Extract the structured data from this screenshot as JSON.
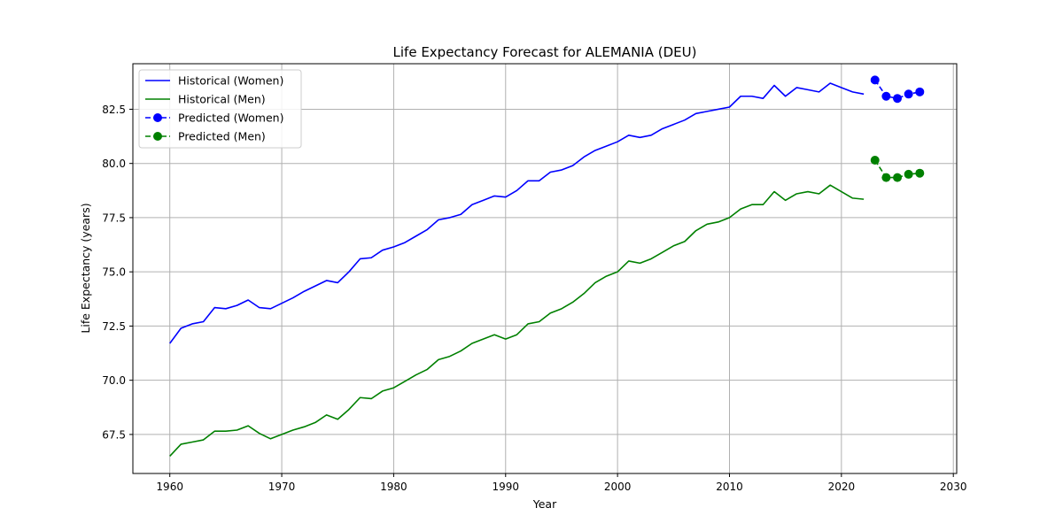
{
  "chart_data": {
    "type": "line",
    "title": "Life Expectancy Forecast for ALEMANIA (DEU)",
    "xlabel": "Year",
    "ylabel": "Life Expectancy (years)",
    "xlim": [
      1956.7,
      2030.3
    ],
    "ylim": [
      65.7,
      84.6
    ],
    "x_ticks": [
      1960,
      1970,
      1980,
      1990,
      2000,
      2010,
      2020,
      2030
    ],
    "y_ticks": [
      67.5,
      70.0,
      72.5,
      75.0,
      77.5,
      80.0,
      82.5
    ],
    "y_tick_labels": [
      "67.5",
      "70.0",
      "72.5",
      "75.0",
      "77.5",
      "80.0",
      "82.5"
    ],
    "grid": true,
    "legend_position": "top-left",
    "series": [
      {
        "name": "Historical (Women)",
        "color": "#0000ff",
        "style": "solid",
        "marker": "none",
        "x": [
          1960,
          1961,
          1962,
          1963,
          1964,
          1965,
          1966,
          1967,
          1968,
          1969,
          1970,
          1971,
          1972,
          1973,
          1974,
          1975,
          1976,
          1977,
          1978,
          1979,
          1980,
          1981,
          1982,
          1983,
          1984,
          1985,
          1986,
          1987,
          1988,
          1989,
          1990,
          1991,
          1992,
          1993,
          1994,
          1995,
          1996,
          1997,
          1998,
          1999,
          2000,
          2001,
          2002,
          2003,
          2004,
          2005,
          2006,
          2007,
          2008,
          2009,
          2010,
          2011,
          2012,
          2013,
          2014,
          2015,
          2016,
          2017,
          2018,
          2019,
          2020,
          2021,
          2022
        ],
        "y": [
          71.7,
          72.4,
          72.6,
          72.7,
          73.35,
          73.3,
          73.45,
          73.7,
          73.35,
          73.3,
          73.55,
          73.8,
          74.1,
          74.35,
          74.6,
          74.5,
          75.0,
          75.6,
          75.65,
          76.0,
          76.15,
          76.35,
          76.65,
          76.95,
          77.4,
          77.5,
          77.65,
          78.1,
          78.3,
          78.5,
          78.45,
          78.75,
          79.2,
          79.2,
          79.6,
          79.7,
          79.9,
          80.3,
          80.6,
          80.8,
          81.0,
          81.3,
          81.2,
          81.3,
          81.6,
          81.8,
          82.0,
          82.3,
          82.4,
          82.5,
          82.6,
          83.1,
          83.1,
          83.0,
          83.6,
          83.1,
          83.5,
          83.4,
          83.3,
          83.7,
          83.5,
          83.3,
          83.2
        ]
      },
      {
        "name": "Historical (Men)",
        "color": "#008000",
        "style": "solid",
        "marker": "none",
        "x": [
          1960,
          1961,
          1962,
          1963,
          1964,
          1965,
          1966,
          1967,
          1968,
          1969,
          1970,
          1971,
          1972,
          1973,
          1974,
          1975,
          1976,
          1977,
          1978,
          1979,
          1980,
          1981,
          1982,
          1983,
          1984,
          1985,
          1986,
          1987,
          1988,
          1989,
          1990,
          1991,
          1992,
          1993,
          1994,
          1995,
          1996,
          1997,
          1998,
          1999,
          2000,
          2001,
          2002,
          2003,
          2004,
          2005,
          2006,
          2007,
          2008,
          2009,
          2010,
          2011,
          2012,
          2013,
          2014,
          2015,
          2016,
          2017,
          2018,
          2019,
          2020,
          2021,
          2022
        ],
        "y": [
          66.5,
          67.05,
          67.15,
          67.25,
          67.65,
          67.65,
          67.7,
          67.9,
          67.55,
          67.3,
          67.5,
          67.7,
          67.85,
          68.05,
          68.4,
          68.2,
          68.65,
          69.2,
          69.15,
          69.5,
          69.65,
          69.95,
          70.25,
          70.5,
          70.95,
          71.1,
          71.35,
          71.7,
          71.9,
          72.1,
          71.9,
          72.1,
          72.6,
          72.7,
          73.1,
          73.3,
          73.6,
          74.0,
          74.5,
          74.8,
          75.0,
          75.5,
          75.4,
          75.6,
          75.9,
          76.2,
          76.4,
          76.9,
          77.2,
          77.3,
          77.5,
          77.9,
          78.1,
          78.1,
          78.7,
          78.3,
          78.6,
          78.7,
          78.6,
          79.0,
          78.7,
          78.4,
          78.35
        ]
      },
      {
        "name": "Predicted (Women)",
        "color": "#0000ff",
        "style": "dashed",
        "marker": "circle",
        "x": [
          2023,
          2024,
          2025,
          2026,
          2027
        ],
        "y": [
          83.85,
          83.1,
          83.0,
          83.2,
          83.3
        ]
      },
      {
        "name": "Predicted (Men)",
        "color": "#008000",
        "style": "dashed",
        "marker": "circle",
        "x": [
          2023,
          2024,
          2025,
          2026,
          2027
        ],
        "y": [
          80.15,
          79.35,
          79.35,
          79.5,
          79.55
        ]
      }
    ]
  }
}
